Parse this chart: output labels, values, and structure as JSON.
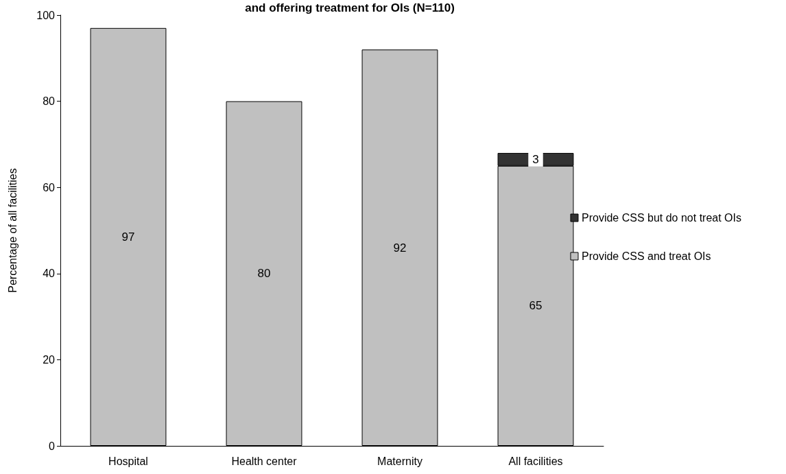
{
  "chart_data": {
    "type": "bar",
    "title": "and offering treatment for OIs (N=110)",
    "ylabel": "Percentage of all facilities",
    "categories": [
      "Hospital",
      "Health center",
      "Maternity",
      "All facilities"
    ],
    "series": [
      {
        "name": "Provide CSS and treat OIs",
        "color": "#c0c0c0",
        "values": [
          97,
          80,
          92,
          65
        ]
      },
      {
        "name": "Provide CSS but do not treat OIs",
        "color": "#333333",
        "values": [
          null,
          null,
          null,
          3
        ]
      }
    ],
    "stacked": true,
    "data_labels": true,
    "ylim": [
      0,
      100
    ],
    "yticks": [
      0,
      20,
      40,
      60,
      80,
      100
    ],
    "grid": false,
    "legend": "right"
  }
}
